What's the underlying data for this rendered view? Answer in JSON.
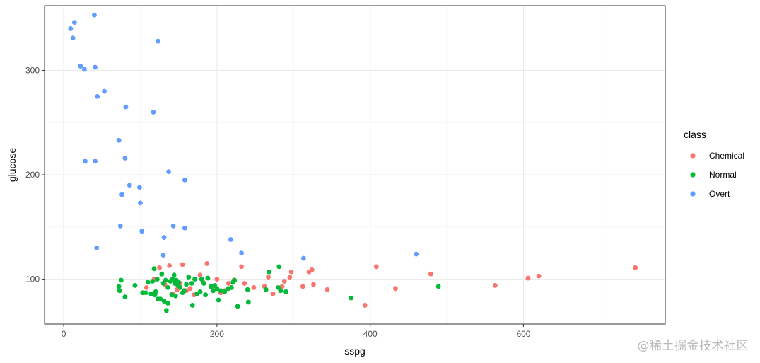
{
  "chart_data": {
    "type": "scatter",
    "xlabel": "sspg",
    "ylabel": "glucose",
    "xlim": [
      -25,
      785
    ],
    "ylim": [
      57,
      362
    ],
    "x_ticks": [
      0,
      200,
      400,
      600
    ],
    "y_ticks": [
      100,
      200,
      300
    ],
    "grid": true,
    "legend": {
      "title": "class",
      "placement": "right"
    },
    "series": [
      {
        "name": "Chemical",
        "color": "#F8766D",
        "points": [
          [
            108,
            92
          ],
          [
            118,
            100
          ],
          [
            125,
            111
          ],
          [
            132,
            95
          ],
          [
            138,
            113
          ],
          [
            142,
            86
          ],
          [
            148,
            90
          ],
          [
            152,
            96
          ],
          [
            155,
            114
          ],
          [
            160,
            89
          ],
          [
            165,
            91
          ],
          [
            170,
            85
          ],
          [
            178,
            104
          ],
          [
            182,
            97
          ],
          [
            187,
            115
          ],
          [
            195,
            93
          ],
          [
            200,
            100
          ],
          [
            205,
            87
          ],
          [
            210,
            89
          ],
          [
            215,
            96
          ],
          [
            222,
            99
          ],
          [
            232,
            112
          ],
          [
            236,
            96
          ],
          [
            248,
            92
          ],
          [
            262,
            93
          ],
          [
            267,
            102
          ],
          [
            273,
            86
          ],
          [
            285,
            93
          ],
          [
            288,
            98
          ],
          [
            295,
            102
          ],
          [
            297,
            107
          ],
          [
            312,
            93
          ],
          [
            320,
            107
          ],
          [
            324,
            109
          ],
          [
            326,
            95
          ],
          [
            344,
            90
          ],
          [
            393,
            75
          ],
          [
            408,
            112
          ],
          [
            433,
            91
          ],
          [
            479,
            105
          ],
          [
            563,
            94
          ],
          [
            606,
            101
          ],
          [
            620,
            103
          ],
          [
            746,
            111
          ]
        ]
      },
      {
        "name": "Normal",
        "color": "#00BA38",
        "points": [
          [
            72,
            93
          ],
          [
            73,
            89
          ],
          [
            75,
            99
          ],
          [
            80,
            83
          ],
          [
            93,
            94
          ],
          [
            103,
            87
          ],
          [
            107,
            87
          ],
          [
            110,
            97
          ],
          [
            114,
            86
          ],
          [
            116,
            98
          ],
          [
            118,
            110
          ],
          [
            119,
            85
          ],
          [
            120,
            88
          ],
          [
            122,
            100
          ],
          [
            123,
            81
          ],
          [
            126,
            81
          ],
          [
            128,
            105
          ],
          [
            130,
            96
          ],
          [
            131,
            79
          ],
          [
            133,
            99
          ],
          [
            134,
            70
          ],
          [
            136,
            92
          ],
          [
            136,
            77
          ],
          [
            139,
            98
          ],
          [
            141,
            85
          ],
          [
            142,
            100
          ],
          [
            144,
            104
          ],
          [
            145,
            96
          ],
          [
            146,
            84
          ],
          [
            147,
            99
          ],
          [
            149,
            94
          ],
          [
            150,
            97
          ],
          [
            152,
            92
          ],
          [
            155,
            87
          ],
          [
            157,
            89
          ],
          [
            160,
            95
          ],
          [
            163,
            102
          ],
          [
            167,
            96
          ],
          [
            168,
            75
          ],
          [
            171,
            100
          ],
          [
            174,
            86
          ],
          [
            178,
            88
          ],
          [
            180,
            100
          ],
          [
            183,
            96
          ],
          [
            185,
            85
          ],
          [
            188,
            101
          ],
          [
            192,
            93
          ],
          [
            195,
            89
          ],
          [
            197,
            94
          ],
          [
            200,
            91
          ],
          [
            202,
            80
          ],
          [
            205,
            89
          ],
          [
            210,
            88
          ],
          [
            215,
            91
          ],
          [
            219,
            92
          ],
          [
            221,
            97
          ],
          [
            223,
            99
          ],
          [
            227,
            74
          ],
          [
            240,
            90
          ],
          [
            241,
            78
          ],
          [
            264,
            90
          ],
          [
            268,
            107
          ],
          [
            280,
            92
          ],
          [
            281,
            112
          ],
          [
            283,
            89
          ],
          [
            290,
            88
          ],
          [
            375,
            82
          ],
          [
            489,
            93
          ]
        ]
      },
      {
        "name": "Overt",
        "color": "#619CFF",
        "points": [
          [
            9,
            340
          ],
          [
            12,
            331
          ],
          [
            14,
            346
          ],
          [
            22,
            304
          ],
          [
            27,
            301
          ],
          [
            28,
            213
          ],
          [
            40,
            353
          ],
          [
            41,
            213
          ],
          [
            41,
            303
          ],
          [
            43,
            130
          ],
          [
            44,
            275
          ],
          [
            53,
            280
          ],
          [
            72,
            233
          ],
          [
            74,
            151
          ],
          [
            76,
            181
          ],
          [
            80,
            216
          ],
          [
            81,
            265
          ],
          [
            86,
            190
          ],
          [
            99,
            188
          ],
          [
            100,
            173
          ],
          [
            102,
            146
          ],
          [
            117,
            260
          ],
          [
            123,
            328
          ],
          [
            130,
            123
          ],
          [
            131,
            140
          ],
          [
            137,
            203
          ],
          [
            143,
            151
          ],
          [
            158,
            149
          ],
          [
            158,
            195
          ],
          [
            218,
            138
          ],
          [
            232,
            125
          ],
          [
            313,
            120
          ],
          [
            460,
            124
          ]
        ]
      }
    ]
  },
  "watermark": "@稀土掘金技术社区"
}
